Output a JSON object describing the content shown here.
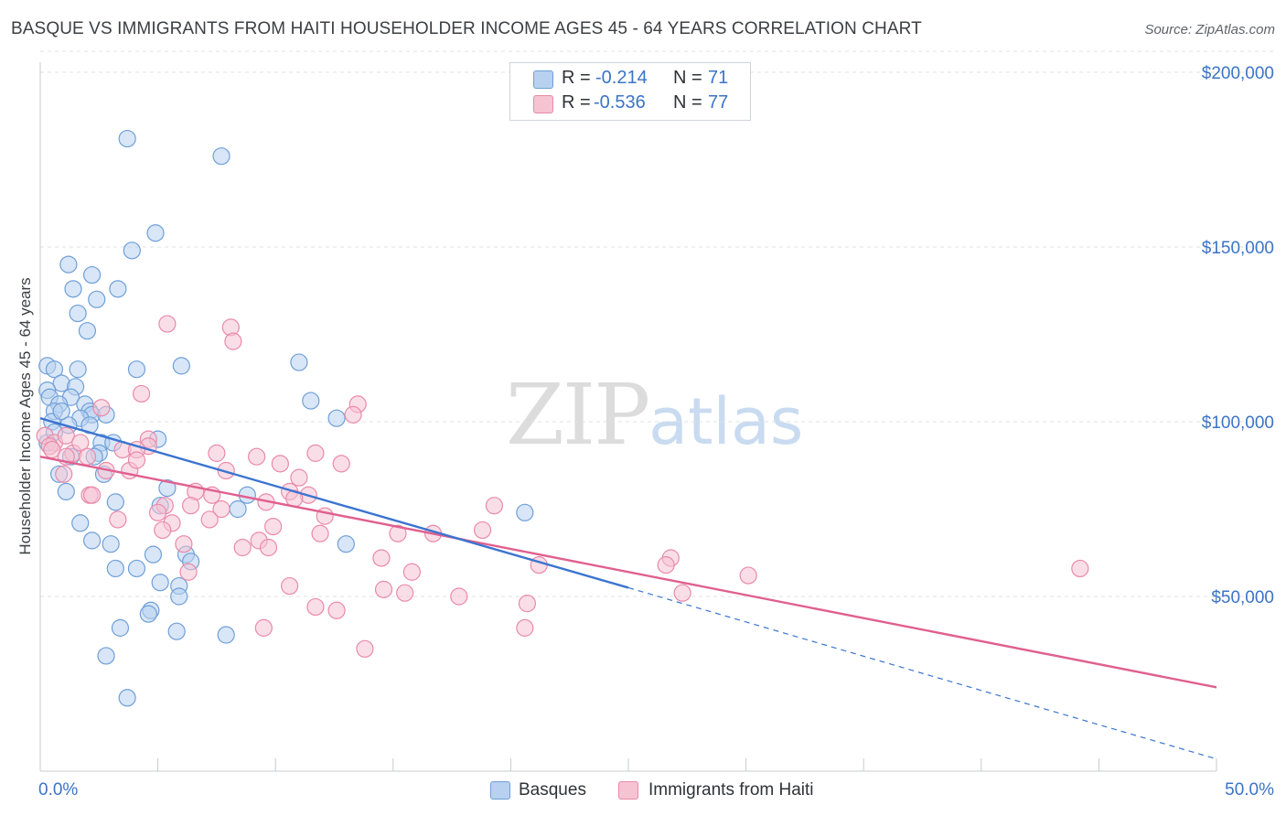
{
  "title": "BASQUE VS IMMIGRANTS FROM HAITI HOUSEHOLDER INCOME AGES 45 - 64 YEARS CORRELATION CHART",
  "source": "Source: ZipAtlas.com",
  "watermark": {
    "zip": "ZIP",
    "atlas": "atlas"
  },
  "legend_stats": {
    "rows": [
      {
        "r_label": "R =",
        "r_value": "-0.214",
        "n_label": "N =",
        "n_value": "71"
      },
      {
        "r_label": "R =",
        "r_value": "-0.536",
        "n_label": "N =",
        "n_value": "77"
      }
    ]
  },
  "colors": {
    "basques_fill": "#b8d1f0",
    "basques_stroke": "#6f9fd8",
    "basques_line": "#3b74d0",
    "haiti_fill": "#f6c3d3",
    "haiti_stroke": "#e98aa9",
    "haiti_line": "#e0608f",
    "axis_text": "#3b74c6",
    "grid": "#dfe2e5"
  },
  "chart_data": {
    "type": "scatter",
    "title": "BASQUE VS IMMIGRANTS FROM HAITI HOUSEHOLDER INCOME AGES 45 - 64 YEARS CORRELATION CHART",
    "xlabel": "",
    "ylabel": "Householder Income Ages 45 - 64 years",
    "xlim": [
      0,
      50
    ],
    "ylim": [
      0,
      210000
    ],
    "x_tick_labels": [
      "0.0%",
      "50.0%"
    ],
    "y_ticks": [
      50000,
      100000,
      150000,
      200000
    ],
    "y_tick_labels": [
      "$50,000",
      "$100,000",
      "$150,000",
      "$200,000"
    ],
    "grid": true,
    "legend_placement": "bottom",
    "series": [
      {
        "name": "Basques",
        "trend": {
          "x": [
            0,
            25
          ],
          "y": [
            101000,
            52500
          ],
          "dashed_extension_to": [
            50,
            3500
          ]
        },
        "points": [
          [
            3.7,
            181000
          ],
          [
            7.7,
            176000
          ],
          [
            4.9,
            154000
          ],
          [
            3.9,
            149000
          ],
          [
            1.2,
            145000
          ],
          [
            2.2,
            142000
          ],
          [
            3.3,
            138000
          ],
          [
            1.4,
            138000
          ],
          [
            2.4,
            135000
          ],
          [
            1.6,
            131000
          ],
          [
            2.0,
            126000
          ],
          [
            11.0,
            117000
          ],
          [
            6.0,
            116000
          ],
          [
            0.3,
            116000
          ],
          [
            0.6,
            115000
          ],
          [
            1.6,
            115000
          ],
          [
            4.1,
            115000
          ],
          [
            0.9,
            111000
          ],
          [
            1.5,
            110000
          ],
          [
            0.3,
            109000
          ],
          [
            0.4,
            107000
          ],
          [
            1.3,
            107000
          ],
          [
            11.5,
            106000
          ],
          [
            0.8,
            105000
          ],
          [
            1.9,
            105000
          ],
          [
            0.6,
            103000
          ],
          [
            2.1,
            103000
          ],
          [
            2.2,
            102000
          ],
          [
            2.8,
            102000
          ],
          [
            1.7,
            101000
          ],
          [
            12.6,
            101000
          ],
          [
            0.5,
            100000
          ],
          [
            1.2,
            99000
          ],
          [
            2.1,
            99000
          ],
          [
            2.6,
            94000
          ],
          [
            0.3,
            94000
          ],
          [
            5.0,
            95000
          ],
          [
            3.1,
            94000
          ],
          [
            1.3,
            90000
          ],
          [
            2.5,
            91000
          ],
          [
            2.3,
            90000
          ],
          [
            0.8,
            85000
          ],
          [
            2.7,
            85000
          ],
          [
            5.4,
            81000
          ],
          [
            1.1,
            80000
          ],
          [
            8.8,
            79000
          ],
          [
            3.2,
            77000
          ],
          [
            5.1,
            76000
          ],
          [
            8.4,
            75000
          ],
          [
            20.6,
            74000
          ],
          [
            1.7,
            71000
          ],
          [
            2.2,
            66000
          ],
          [
            3.0,
            65000
          ],
          [
            13.0,
            65000
          ],
          [
            4.8,
            62000
          ],
          [
            6.2,
            62000
          ],
          [
            6.4,
            60000
          ],
          [
            3.2,
            58000
          ],
          [
            4.1,
            58000
          ],
          [
            5.1,
            54000
          ],
          [
            5.9,
            53000
          ],
          [
            5.9,
            50000
          ],
          [
            4.7,
            46000
          ],
          [
            4.6,
            45000
          ],
          [
            3.4,
            41000
          ],
          [
            5.8,
            40000
          ],
          [
            7.9,
            39000
          ],
          [
            2.8,
            33000
          ],
          [
            3.7,
            21000
          ],
          [
            0.6,
            97000
          ],
          [
            0.9,
            103000
          ]
        ]
      },
      {
        "name": "Immigrants from Haiti",
        "trend": {
          "x": [
            0,
            50
          ],
          "y": [
            90000,
            24000
          ]
        },
        "points": [
          [
            5.4,
            128000
          ],
          [
            8.1,
            127000
          ],
          [
            8.2,
            123000
          ],
          [
            4.3,
            108000
          ],
          [
            13.5,
            105000
          ],
          [
            13.3,
            102000
          ],
          [
            2.6,
            104000
          ],
          [
            0.2,
            96000
          ],
          [
            0.6,
            94000
          ],
          [
            1.1,
            96000
          ],
          [
            0.4,
            93000
          ],
          [
            1.4,
            91000
          ],
          [
            4.6,
            95000
          ],
          [
            4.6,
            93000
          ],
          [
            7.5,
            91000
          ],
          [
            9.2,
            90000
          ],
          [
            3.5,
            92000
          ],
          [
            4.1,
            92000
          ],
          [
            10.2,
            88000
          ],
          [
            0.5,
            92000
          ],
          [
            11.7,
            91000
          ],
          [
            12.8,
            88000
          ],
          [
            2.8,
            86000
          ],
          [
            3.8,
            86000
          ],
          [
            7.9,
            86000
          ],
          [
            1.0,
            85000
          ],
          [
            1.1,
            90000
          ],
          [
            4.1,
            89000
          ],
          [
            11.0,
            84000
          ],
          [
            2.1,
            79000
          ],
          [
            2.2,
            79000
          ],
          [
            6.6,
            80000
          ],
          [
            7.3,
            79000
          ],
          [
            10.6,
            80000
          ],
          [
            11.4,
            79000
          ],
          [
            10.8,
            78000
          ],
          [
            9.6,
            77000
          ],
          [
            19.3,
            76000
          ],
          [
            5.3,
            76000
          ],
          [
            6.4,
            76000
          ],
          [
            7.7,
            75000
          ],
          [
            5.0,
            74000
          ],
          [
            3.3,
            72000
          ],
          [
            5.6,
            71000
          ],
          [
            7.2,
            72000
          ],
          [
            12.1,
            73000
          ],
          [
            9.9,
            70000
          ],
          [
            18.8,
            69000
          ],
          [
            16.7,
            68000
          ],
          [
            5.2,
            69000
          ],
          [
            11.9,
            68000
          ],
          [
            15.2,
            68000
          ],
          [
            9.3,
            66000
          ],
          [
            6.1,
            65000
          ],
          [
            9.7,
            64000
          ],
          [
            8.6,
            64000
          ],
          [
            14.5,
            61000
          ],
          [
            26.8,
            61000
          ],
          [
            26.6,
            59000
          ],
          [
            21.2,
            59000
          ],
          [
            30.1,
            56000
          ],
          [
            44.2,
            58000
          ],
          [
            15.8,
            57000
          ],
          [
            6.3,
            57000
          ],
          [
            10.6,
            53000
          ],
          [
            14.6,
            52000
          ],
          [
            15.5,
            51000
          ],
          [
            17.8,
            50000
          ],
          [
            27.3,
            51000
          ],
          [
            11.7,
            47000
          ],
          [
            12.6,
            46000
          ],
          [
            20.7,
            48000
          ],
          [
            20.6,
            41000
          ],
          [
            9.5,
            41000
          ],
          [
            13.8,
            35000
          ],
          [
            1.7,
            94000
          ],
          [
            2.0,
            90000
          ]
        ]
      }
    ]
  }
}
